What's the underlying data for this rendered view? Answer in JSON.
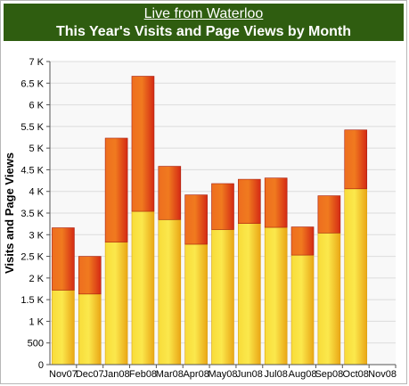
{
  "header": {
    "link_text": "Live from Waterloo",
    "title": "This Year's Visits and Page Views by Month"
  },
  "colors": {
    "header_bg": "#2f5d10",
    "visits": "#f3c21f",
    "pageviews_extra": "#e5431a"
  },
  "chart_data": {
    "type": "bar",
    "stacked": true,
    "title": "This Year's Visits and Page Views by Month",
    "ylabel": "Visits and Page Views",
    "xlabel": "",
    "ylim": [
      0,
      7000
    ],
    "ytick_labels": [
      "0",
      "500",
      "1 K",
      "1.5 K",
      "2 K",
      "2.5 K",
      "3 K",
      "3.5 K",
      "4 K",
      "4.5 K",
      "5 K",
      "5.5 K",
      "6 K",
      "6.5 K",
      "7 K"
    ],
    "yticks": [
      0,
      500,
      1000,
      1500,
      2000,
      2500,
      3000,
      3500,
      4000,
      4500,
      5000,
      5500,
      6000,
      6500,
      7000
    ],
    "grid": true,
    "categories": [
      "Nov07",
      "Dec07",
      "Jan08",
      "Feb08",
      "Mar08",
      "Apr08",
      "May08",
      "Jun08",
      "Jul08",
      "Aug08",
      "Sep08",
      "Oct08",
      "Nov08"
    ],
    "series": [
      {
        "values": [
          1720,
          1630,
          2830,
          3540,
          3350,
          2780,
          3120,
          3260,
          3170,
          2530,
          3040,
          4060,
          0
        ]
      },
      {
        "values": [
          1440,
          870,
          2400,
          3120,
          1230,
          1140,
          1060,
          1020,
          1140,
          650,
          860,
          1360,
          0
        ]
      }
    ]
  }
}
